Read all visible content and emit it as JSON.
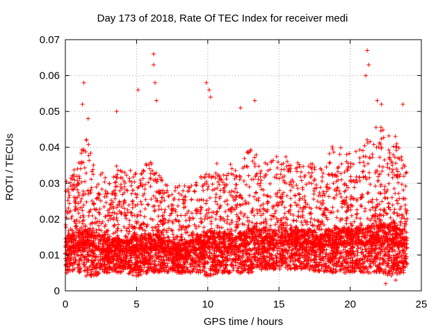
{
  "chart_data": {
    "type": "scatter",
    "title": "Day 173 of 2018, Rate Of TEC Index for receiver medi",
    "xlabel": "GPS time / hours",
    "ylabel": "ROTI / TECUs",
    "xlim": [
      0,
      25
    ],
    "ylim": [
      0,
      0.07
    ],
    "xticks": [
      0,
      5,
      10,
      15,
      20,
      25
    ],
    "xtick_labels": [
      "0",
      "5",
      "10",
      "15",
      "20",
      "25"
    ],
    "yticks": [
      0,
      0.01,
      0.02,
      0.03,
      0.04,
      0.05,
      0.06,
      0.07
    ],
    "ytick_labels": [
      "0",
      "0.01",
      "0.02",
      "0.03",
      "0.04",
      "0.05",
      "0.06",
      "0.07"
    ],
    "grid": true,
    "marker": "plus",
    "color": "#ff0000",
    "series": [
      {
        "name": "ROTI",
        "notable_points": [
          {
            "x": 1.3,
            "y": 0.058
          },
          {
            "x": 1.2,
            "y": 0.052
          },
          {
            "x": 1.6,
            "y": 0.048
          },
          {
            "x": 3.6,
            "y": 0.05
          },
          {
            "x": 5.1,
            "y": 0.056
          },
          {
            "x": 6.2,
            "y": 0.066
          },
          {
            "x": 6.2,
            "y": 0.063
          },
          {
            "x": 6.3,
            "y": 0.058
          },
          {
            "x": 6.4,
            "y": 0.053
          },
          {
            "x": 9.9,
            "y": 0.058
          },
          {
            "x": 10.1,
            "y": 0.056
          },
          {
            "x": 10.2,
            "y": 0.054
          },
          {
            "x": 12.3,
            "y": 0.051
          },
          {
            "x": 13.3,
            "y": 0.053
          },
          {
            "x": 21.2,
            "y": 0.067
          },
          {
            "x": 21.3,
            "y": 0.063
          },
          {
            "x": 21.1,
            "y": 0.06
          },
          {
            "x": 21.9,
            "y": 0.053
          },
          {
            "x": 22.2,
            "y": 0.052
          },
          {
            "x": 23.7,
            "y": 0.052
          },
          {
            "x": 22.5,
            "y": 0.002
          },
          {
            "x": 23.2,
            "y": 0.003
          }
        ],
        "envelope": {
          "x": [
            0,
            0.5,
            1,
            1.5,
            2,
            3,
            4,
            5,
            6,
            7,
            8,
            9,
            10,
            11,
            12,
            13,
            14,
            15,
            16,
            17,
            18,
            19,
            20,
            21,
            22,
            23,
            24
          ],
          "typical_max": [
            0.03,
            0.033,
            0.038,
            0.043,
            0.035,
            0.032,
            0.035,
            0.034,
            0.036,
            0.03,
            0.029,
            0.03,
            0.037,
            0.033,
            0.035,
            0.04,
            0.036,
            0.037,
            0.036,
            0.035,
            0.034,
            0.042,
            0.037,
            0.042,
            0.045,
            0.045,
            0.033
          ],
          "typical_min": [
            0.005,
            0.005,
            0.005,
            0.004,
            0.004,
            0.005,
            0.005,
            0.004,
            0.005,
            0.005,
            0.005,
            0.005,
            0.004,
            0.005,
            0.005,
            0.005,
            0.006,
            0.006,
            0.006,
            0.006,
            0.005,
            0.005,
            0.005,
            0.005,
            0.005,
            0.004,
            0.005
          ],
          "median": [
            0.011,
            0.012,
            0.013,
            0.013,
            0.012,
            0.011,
            0.011,
            0.011,
            0.012,
            0.011,
            0.01,
            0.011,
            0.012,
            0.012,
            0.012,
            0.013,
            0.013,
            0.013,
            0.013,
            0.013,
            0.012,
            0.013,
            0.013,
            0.013,
            0.014,
            0.013,
            0.012
          ]
        },
        "sample_count": 6000
      }
    ]
  }
}
